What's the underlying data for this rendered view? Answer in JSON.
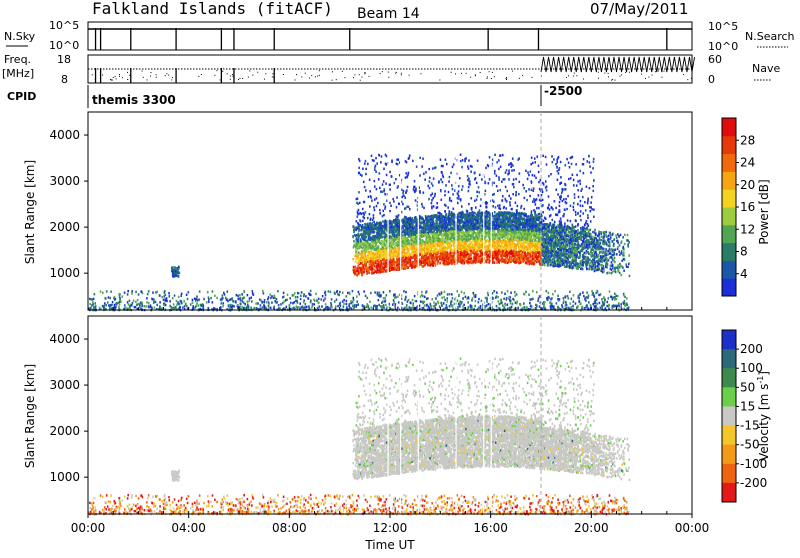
{
  "header": {
    "station": "Falkland Islands (fitACF)",
    "beam": "Beam 14",
    "date": "07/May/2011"
  },
  "top_panels": {
    "nsky_label": "N.Sky",
    "nsky_scale": [
      "10^5",
      "10^0"
    ],
    "nsearch_label": "N.Search",
    "freq_label": "Freq.",
    "freq_unit": "[MHz]",
    "freq_scale": [
      "18",
      "8"
    ],
    "nave_label": "Nave",
    "nave_scale": [
      "60",
      "0"
    ],
    "nsearch_scale": [
      "10^5",
      "10^0"
    ],
    "cpid_label": "CPID",
    "cpid_value": "themis 3300",
    "cpid_change": "-2500"
  },
  "chart_data": [
    {
      "type": "heatmap",
      "name": "power",
      "ylabel": "Slant Range [km]",
      "ylim": [
        200,
        4500
      ],
      "yticks": [
        "1000",
        "2000",
        "3000",
        "4000"
      ],
      "xlim_hours": [
        0,
        24
      ],
      "colorbar": {
        "label": "Power [dB]",
        "ticks": [
          "4",
          "8",
          "12",
          "16",
          "20",
          "24",
          "28"
        ],
        "colors": [
          "#1a2fd8",
          "#1b57a8",
          "#2a7b67",
          "#52a653",
          "#9ccd3e",
          "#f2d41e",
          "#f7a411",
          "#f06a09",
          "#e53a06",
          "#e00d0d"
        ]
      }
    },
    {
      "type": "heatmap",
      "name": "velocity",
      "ylabel": "Slant Range [km]",
      "ylim": [
        200,
        4500
      ],
      "yticks": [
        "1000",
        "2000",
        "3000",
        "4000"
      ],
      "xlim_hours": [
        0,
        24
      ],
      "xticks": [
        "00:00",
        "04:00",
        "08:00",
        "12:00",
        "16:00",
        "20:00",
        "00:00"
      ],
      "xlabel": "Time UT",
      "colorbar": {
        "label": "Velocity [m s",
        "label_sup": "-1",
        "label_end": "]",
        "ticks": [
          "200",
          "100",
          "50",
          "15",
          "-15",
          "-50",
          "-100",
          "-200"
        ],
        "colors": [
          "#1c2fc8",
          "#2c6a7a",
          "#3e8a4c",
          "#6ad04a",
          "#c8c8c4",
          "#f3c62a",
          "#f59a18",
          "#ee6410",
          "#e31818"
        ]
      }
    }
  ]
}
